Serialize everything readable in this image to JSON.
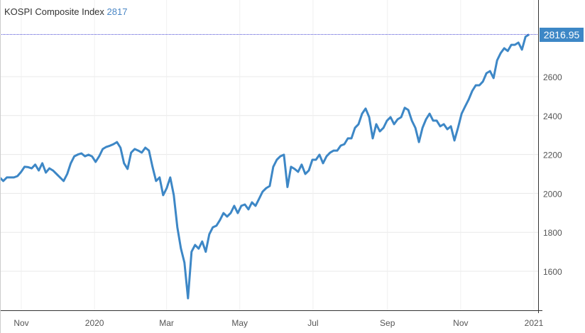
{
  "chart_data": {
    "type": "line",
    "title": "KOSPI Composite Index",
    "title_value": "2817",
    "last_value_label": "2816.95",
    "xlabel": "",
    "ylabel": "",
    "ylim": [
      1420,
      2990
    ],
    "yticks": [
      1600,
      1800,
      2000,
      2200,
      2400,
      2600
    ],
    "xticks": [
      {
        "label": "Nov",
        "date": "2019-11-01"
      },
      {
        "label": "2020",
        "date": "2020-01-01"
      },
      {
        "label": "Mar",
        "date": "2020-03-01"
      },
      {
        "label": "May",
        "date": "2020-05-01"
      },
      {
        "label": "Jul",
        "date": "2020-07-01"
      },
      {
        "label": "Sep",
        "date": "2020-09-01"
      },
      {
        "label": "Nov",
        "date": "2020-11-01"
      },
      {
        "label": "2021",
        "date": "2021-01-01"
      }
    ],
    "grid": true,
    "start_date": "2019-10-14",
    "end_date": "2020-12-28",
    "series": [
      {
        "name": "KOSPI Composite Index",
        "color": "#3d87c6",
        "values": [
          2082,
          2064,
          2082,
          2082,
          2082,
          2089,
          2110,
          2137,
          2135,
          2129,
          2148,
          2118,
          2155,
          2107,
          2129,
          2118,
          2100,
          2082,
          2064,
          2100,
          2155,
          2191,
          2200,
          2206,
          2191,
          2199,
          2190,
          2162,
          2191,
          2228,
          2239,
          2245,
          2253,
          2264,
          2235,
          2155,
          2126,
          2210,
          2228,
          2220,
          2210,
          2235,
          2220,
          2137,
          2064,
          2082,
          1991,
          2027,
          2082,
          1991,
          1826,
          1717,
          1644,
          1461,
          1700,
          1735,
          1716,
          1753,
          1700,
          1790,
          1826,
          1834,
          1863,
          1899,
          1881,
          1899,
          1936,
          1899,
          1936,
          1943,
          1918,
          1954,
          1936,
          1972,
          2009,
          2027,
          2038,
          2137,
          2173,
          2191,
          2199,
          2033,
          2137,
          2126,
          2111,
          2148,
          2100,
          2118,
          2173,
          2173,
          2199,
          2155,
          2191,
          2210,
          2220,
          2220,
          2246,
          2253,
          2283,
          2283,
          2337,
          2356,
          2410,
          2436,
          2392,
          2283,
          2356,
          2319,
          2337,
          2374,
          2392,
          2356,
          2381,
          2392,
          2440,
          2429,
          2374,
          2337,
          2264,
          2337,
          2381,
          2410,
          2374,
          2374,
          2345,
          2356,
          2330,
          2345,
          2272,
          2337,
          2410,
          2447,
          2483,
          2527,
          2556,
          2556,
          2575,
          2618,
          2629,
          2593,
          2684,
          2721,
          2746,
          2732,
          2764,
          2764,
          2775,
          2739,
          2805,
          2817
        ]
      }
    ],
    "last_value": 2816.95
  },
  "colors": {
    "line": "#3d87c6",
    "ref_line": "#4b4bd6",
    "grid": "#e8e8e8",
    "axis": "#333333",
    "tick_text": "#555555"
  }
}
